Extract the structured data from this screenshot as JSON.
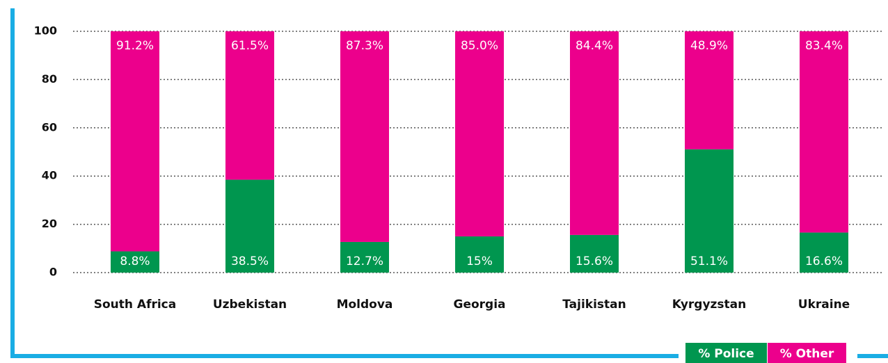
{
  "chart_data": {
    "type": "stacked_bar",
    "categories": [
      "South Africa",
      "Uzbekistan",
      "Moldova",
      "Georgia",
      "Tajikistan",
      "Kyrgyzstan",
      "Ukraine"
    ],
    "series": [
      {
        "name": "% Police",
        "color": "#00964f",
        "values": [
          8.8,
          38.5,
          12.7,
          15,
          15.6,
          51.1,
          16.6
        ],
        "value_labels": [
          "8.8%",
          "38.5%",
          "12.7%",
          "15%",
          "15.6%",
          "51.1%",
          "16.6%"
        ]
      },
      {
        "name": "% Other",
        "color": "#ec008c",
        "values": [
          91.2,
          61.5,
          87.3,
          85.0,
          84.4,
          48.9,
          83.4
        ],
        "value_labels": [
          "91.2%",
          "61.5%",
          "87.3%",
          "85.0%",
          "84.4%",
          "48.9%",
          "83.4%"
        ]
      }
    ],
    "ylim": [
      0,
      100
    ],
    "yticks": [
      0,
      20,
      40,
      60,
      80,
      100
    ],
    "grid": true,
    "legend": "bottom-right"
  }
}
